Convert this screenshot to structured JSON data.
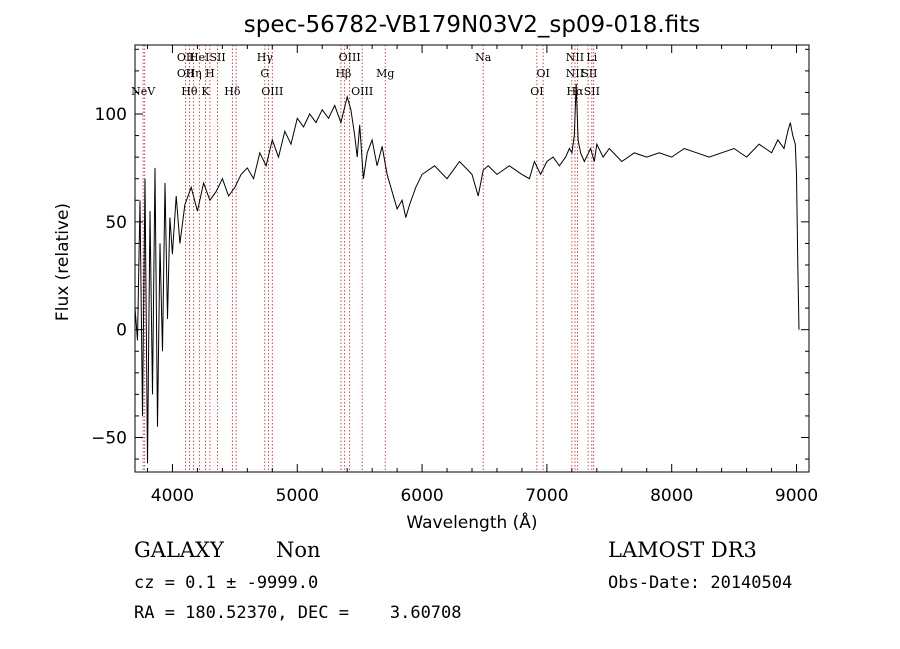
{
  "chart_data": {
    "type": "line",
    "title": "spec-56782-VB179N03V2_sp09-018.fits",
    "xlabel": "Wavelength (Å)",
    "ylabel": "Flux (relative)",
    "xlim": [
      3700,
      9100
    ],
    "ylim": [
      -66,
      132
    ],
    "xticks": [
      4000,
      5000,
      6000,
      7000,
      8000,
      9000
    ],
    "yticks": [
      -50,
      0,
      50,
      100
    ],
    "grid": false,
    "series": [
      {
        "color": "#000000",
        "x": [
          3700,
          3720,
          3740,
          3760,
          3780,
          3800,
          3820,
          3840,
          3860,
          3880,
          3900,
          3920,
          3940,
          3960,
          3980,
          4000,
          4030,
          4060,
          4100,
          4150,
          4200,
          4250,
          4300,
          4350,
          4400,
          4450,
          4500,
          4550,
          4600,
          4650,
          4700,
          4750,
          4800,
          4850,
          4900,
          4950,
          5000,
          5050,
          5100,
          5150,
          5200,
          5250,
          5300,
          5350,
          5400,
          5430,
          5460,
          5480,
          5500,
          5530,
          5560,
          5600,
          5640,
          5680,
          5720,
          5760,
          5800,
          5840,
          5870,
          5900,
          5950,
          6000,
          6100,
          6200,
          6300,
          6400,
          6450,
          6490,
          6530,
          6600,
          6700,
          6800,
          6860,
          6900,
          6950,
          7000,
          7050,
          7100,
          7150,
          7180,
          7200,
          7220,
          7235,
          7250,
          7270,
          7300,
          7350,
          7380,
          7400,
          7450,
          7500,
          7600,
          7700,
          7800,
          7900,
          8000,
          8100,
          8200,
          8300,
          8400,
          8500,
          8600,
          8700,
          8800,
          8850,
          8900,
          8930,
          8950,
          8970,
          8990,
          9000,
          9010,
          9020
        ],
        "values": [
          10,
          -5,
          60,
          -40,
          70,
          -62,
          55,
          -30,
          75,
          -45,
          40,
          -10,
          68,
          5,
          52,
          35,
          62,
          40,
          58,
          66,
          55,
          68,
          60,
          64,
          70,
          62,
          66,
          72,
          75,
          70,
          82,
          76,
          88,
          80,
          92,
          86,
          98,
          94,
          100,
          96,
          102,
          98,
          104,
          96,
          108,
          102,
          90,
          80,
          95,
          70,
          82,
          88,
          76,
          85,
          72,
          64,
          56,
          60,
          52,
          58,
          66,
          72,
          76,
          70,
          78,
          72,
          62,
          74,
          76,
          72,
          76,
          72,
          70,
          78,
          72,
          78,
          80,
          76,
          80,
          84,
          82,
          90,
          114,
          88,
          82,
          78,
          84,
          78,
          86,
          80,
          84,
          78,
          82,
          80,
          82,
          80,
          84,
          82,
          80,
          82,
          84,
          80,
          86,
          82,
          88,
          84,
          92,
          96,
          90,
          86,
          72,
          30,
          0
        ]
      }
    ],
    "line_labels": [
      {
        "x": 3765,
        "text": "NeV",
        "row": 3
      },
      {
        "x": 3778,
        "text": "",
        "row": 0
      },
      {
        "x": 4106,
        "text": "OII",
        "row": 1
      },
      {
        "x": 4106,
        "text": "OII",
        "row": 2
      },
      {
        "x": 4136,
        "text": "Hθ",
        "row": 3
      },
      {
        "x": 4170,
        "text": "Hη",
        "row": 2
      },
      {
        "x": 4215,
        "text": "HeI",
        "row": 1
      },
      {
        "x": 4265,
        "text": "K",
        "row": 3
      },
      {
        "x": 4300,
        "text": "H",
        "row": 2
      },
      {
        "x": 4362,
        "text": "SII",
        "row": 1
      },
      {
        "x": 4480,
        "text": "Hδ",
        "row": 3
      },
      {
        "x": 4740,
        "text": "Hγ",
        "row": 1
      },
      {
        "x": 4740,
        "text": "G",
        "row": 2
      },
      {
        "x": 4800,
        "text": "OIII",
        "row": 3
      },
      {
        "x": 5420,
        "text": "OIII",
        "row": 1
      },
      {
        "x": 5370,
        "text": "Hβ",
        "row": 2
      },
      {
        "x": 5520,
        "text": "OIII",
        "row": 3
      },
      {
        "x": 5705,
        "text": "Mg",
        "row": 2
      },
      {
        "x": 6490,
        "text": "Na",
        "row": 1
      },
      {
        "x": 6920,
        "text": "OI",
        "row": 3
      },
      {
        "x": 6970,
        "text": "OI",
        "row": 2
      },
      {
        "x": 7225,
        "text": "NII",
        "row": 1
      },
      {
        "x": 7225,
        "text": "NII",
        "row": 2
      },
      {
        "x": 7225,
        "text": "Hα",
        "row": 3
      },
      {
        "x": 7340,
        "text": "SII",
        "row": 2
      },
      {
        "x": 7360,
        "text": "SII",
        "row": 3
      },
      {
        "x": 7360,
        "text": "Li",
        "row": 1
      }
    ],
    "line_markers": [
      3765,
      3778,
      4106,
      4136,
      4170,
      4215,
      4265,
      4300,
      4362,
      4480,
      4510,
      4740,
      4770,
      4800,
      5350,
      5380,
      5420,
      5520,
      5705,
      6490,
      6920,
      6970,
      7200,
      7225,
      7245,
      7330,
      7360,
      7375
    ]
  },
  "footer": {
    "object_class": "GALAXY",
    "subclass": "Non",
    "survey": "LAMOST DR3",
    "cz": "cz = 0.1 ± -9999.0",
    "obs_date": "Obs-Date: 20140504",
    "coords": "RA = 180.52370, DEC =    3.60708"
  }
}
